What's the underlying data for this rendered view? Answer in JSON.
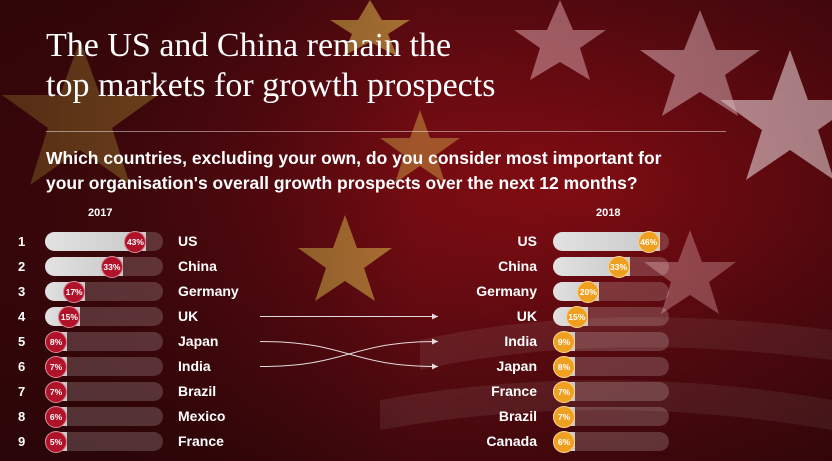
{
  "title_lines": [
    "The US and China remain the",
    "top markets for growth prospects"
  ],
  "question_lines": [
    "Which countries, excluding your own, do you consider most important for",
    "your organisation's overall growth prospects over the next 12 months?"
  ],
  "colors": {
    "left_badge": "#b0122a",
    "right_badge": "#f0a020",
    "background": "#6a0b12"
  },
  "chart_data": {
    "type": "bar",
    "title": "The US and China remain the top markets for growth prospects",
    "xlim": [
      0,
      50
    ],
    "series": [
      {
        "name": "2017",
        "ranks": [
          "1",
          "2",
          "3",
          "4",
          "5",
          "6",
          "7",
          "8",
          "9"
        ],
        "categories": [
          "US",
          "China",
          "Germany",
          "UK",
          "Japan",
          "India",
          "Brazil",
          "Mexico",
          "France"
        ],
        "values": [
          43,
          33,
          17,
          15,
          8,
          7,
          7,
          6,
          5
        ],
        "labels": [
          "43%",
          "33%",
          "17%",
          "15%",
          "8%",
          "7%",
          "7%",
          "6%",
          "5%"
        ]
      },
      {
        "name": "2018",
        "categories": [
          "US",
          "China",
          "Germany",
          "UK",
          "India",
          "Japan",
          "France",
          "Brazil",
          "Canada"
        ],
        "values": [
          46,
          33,
          20,
          15,
          9,
          8,
          7,
          7,
          6
        ],
        "labels": [
          "46%",
          "33%",
          "20%",
          "15%",
          "9%",
          "8%",
          "7%",
          "7%",
          "6%"
        ]
      }
    ],
    "rank_changes": [
      {
        "from": "UK",
        "to": "UK"
      },
      {
        "from": "Japan",
        "to": "Japan"
      },
      {
        "from": "India",
        "to": "India"
      }
    ]
  }
}
